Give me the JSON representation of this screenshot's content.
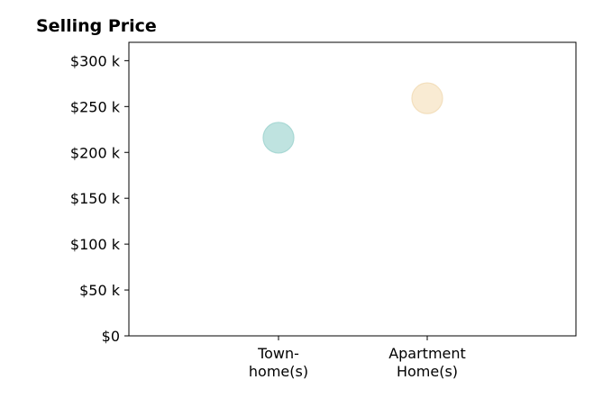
{
  "chart_data": {
    "type": "scatter",
    "title": "Selling Price",
    "xlabel": "",
    "ylabel": "",
    "categories": [
      "Town-\nhome(s)",
      "Apartment\nHome(s)"
    ],
    "values": [
      216000,
      259000
    ],
    "point_colors": [
      "#bfe3e0",
      "#f9ebd3"
    ],
    "point_edge_colors": [
      "#a8d8d4",
      "#f3dfbd"
    ],
    "ylim": [
      0,
      320000
    ],
    "yticks": [
      0,
      50000,
      100000,
      150000,
      200000,
      250000,
      300000
    ],
    "ytick_labels": [
      "$0",
      "$50 k",
      "$100 k",
      "$150 k",
      "$200 k",
      "$250 k",
      "$300 k"
    ],
    "grid": false,
    "legend": "none"
  }
}
